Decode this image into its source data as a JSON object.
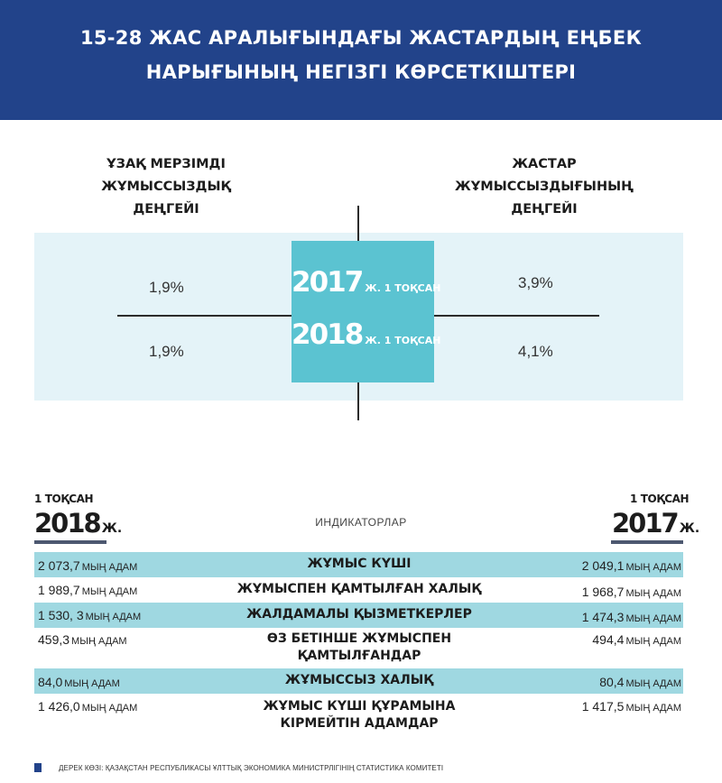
{
  "header": {
    "title_line1": "15-28 ЖАС АРАЛЫҒЫНДАҒЫ ЖАСТАРДЫҢ ЕҢБЕК",
    "title_line2": "НАРЫҒЫНЫҢ НЕГІЗГІ КӨРСЕТКІШТЕРІ"
  },
  "comparison": {
    "left_caption": [
      "ҰЗАҚ МЕРЗІМДІ",
      "ЖҰМЫССЫЗДЫҚ",
      "ДЕҢГЕЙІ"
    ],
    "right_caption": [
      "ЖАСТАР",
      "ЖҰМЫССЫЗДЫҒЫНЫҢ",
      "ДЕҢГЕЙІ"
    ],
    "center": {
      "year_2017": "2017",
      "period_2017": "Ж. 1 ТОҚСАН",
      "year_2018": "2018",
      "period_2018": "Ж. 1 ТОҚСАН"
    },
    "left_2017": "1,9%",
    "left_2018": "1,9%",
    "right_2017": "3,9%",
    "right_2018": "4,1%"
  },
  "table": {
    "left_header": {
      "period": "1 ТОҚСАН",
      "year": "2018",
      "suffix": "Ж."
    },
    "right_header": {
      "period": "1 ТОҚСАН",
      "year": "2017",
      "suffix": "Ж."
    },
    "indicators_label": "ИНДИКАТОРЛАР",
    "unit": "МЫҢ АДАМ",
    "rows": [
      {
        "left_value": "2 073,7",
        "name_line1": "ЖҰМЫС КҮШІ",
        "name_line2": "",
        "right_value": "2 049,1"
      },
      {
        "left_value": "1 989,7",
        "name_line1": "ЖҰМЫСПЕН ҚАМТЫЛҒАН ХАЛЫҚ",
        "name_line2": "",
        "right_value": "1 968,7"
      },
      {
        "left_value": "1 530, 3",
        "name_line1": "ЖАЛДАМАЛЫ ҚЫЗМЕТКЕРЛЕР",
        "name_line2": "",
        "right_value": "1 474,3"
      },
      {
        "left_value": "459,3",
        "name_line1": "ӨЗ БЕТІНШЕ  ЖҰМЫСПЕН",
        "name_line2": "ҚАМТЫЛҒАНДАР",
        "right_value": "494,4"
      },
      {
        "left_value": "84,0",
        "name_line1": "ЖҰМЫССЫЗ ХАЛЫҚ",
        "name_line2": "",
        "right_value": "80,4"
      },
      {
        "left_value": "1 426,0",
        "name_line1": "ЖҰМЫС КҮШІ ҚҰРАМЫНА",
        "name_line2": "КІРМЕЙТІН АДАМДАР",
        "right_value": "1 417,5"
      }
    ]
  },
  "source": "ДЕРЕК КӨЗІ: ҚАЗАҚСТАН РЕСПУБЛИКАСЫ  ҰЛТТЫҚ ЭКОНОМИКА МИНИСТРЛІГІНІҢ СТАТИСТИКА КОМИТЕТІ",
  "colors": {
    "header_bg": "#22438a",
    "center_box": "#5bc3d1",
    "band_bg": "#e4f3f8",
    "row_shade": "#9fd8e1"
  }
}
